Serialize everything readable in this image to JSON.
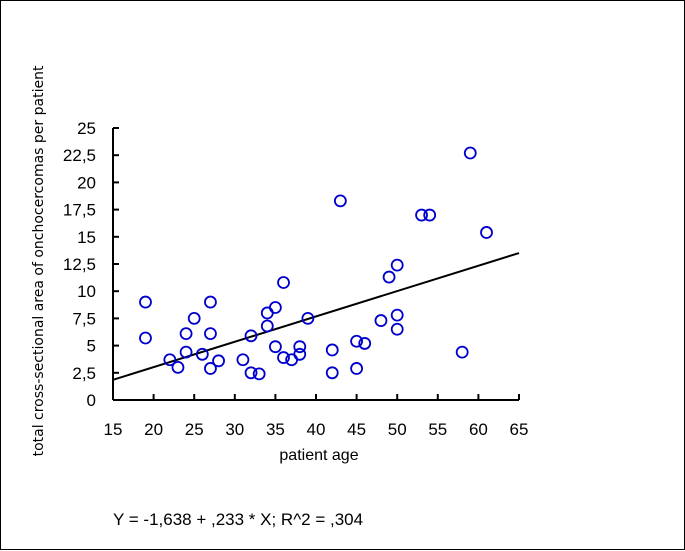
{
  "chart_data": {
    "type": "scatter",
    "title": "",
    "xlabel": "patient age",
    "ylabel": "total cross-sectional area of onchocercomas per patient",
    "xlim": [
      15,
      65
    ],
    "ylim": [
      0,
      25
    ],
    "x_ticks": [
      15,
      20,
      25,
      30,
      35,
      40,
      45,
      50,
      55,
      60,
      65
    ],
    "y_ticks": [
      0,
      2.5,
      5,
      7.5,
      10,
      12.5,
      15,
      17.5,
      20,
      22.5,
      25
    ],
    "x_tick_labels": [
      "15",
      "20",
      "25",
      "30",
      "35",
      "40",
      "45",
      "50",
      "55",
      "60",
      "65"
    ],
    "y_tick_labels": [
      "0",
      "2,5",
      "5",
      "7,5",
      "10",
      "12,5",
      "15",
      "17,5",
      "20",
      "22,5",
      "25"
    ],
    "grid": false,
    "marker": "open-circle",
    "marker_color": "#0000cc",
    "line_color": "#000000",
    "points": [
      {
        "x": 19,
        "y": 9.0
      },
      {
        "x": 19,
        "y": 5.7
      },
      {
        "x": 22,
        "y": 3.7
      },
      {
        "x": 23,
        "y": 3.0
      },
      {
        "x": 24,
        "y": 6.1
      },
      {
        "x": 24,
        "y": 4.4
      },
      {
        "x": 25,
        "y": 7.5
      },
      {
        "x": 26,
        "y": 4.2
      },
      {
        "x": 27,
        "y": 9.0
      },
      {
        "x": 27,
        "y": 6.1
      },
      {
        "x": 27,
        "y": 2.9
      },
      {
        "x": 28,
        "y": 3.6
      },
      {
        "x": 31,
        "y": 3.7
      },
      {
        "x": 32,
        "y": 5.9
      },
      {
        "x": 32,
        "y": 2.5
      },
      {
        "x": 33,
        "y": 2.4
      },
      {
        "x": 34,
        "y": 8.0
      },
      {
        "x": 34,
        "y": 6.8
      },
      {
        "x": 35,
        "y": 8.5
      },
      {
        "x": 35,
        "y": 4.9
      },
      {
        "x": 36,
        "y": 10.8
      },
      {
        "x": 36,
        "y": 3.9
      },
      {
        "x": 37,
        "y": 3.7
      },
      {
        "x": 38,
        "y": 4.9
      },
      {
        "x": 38,
        "y": 4.2
      },
      {
        "x": 39,
        "y": 7.5
      },
      {
        "x": 42,
        "y": 4.6
      },
      {
        "x": 42,
        "y": 2.5
      },
      {
        "x": 43,
        "y": 18.3
      },
      {
        "x": 45,
        "y": 5.4
      },
      {
        "x": 45,
        "y": 2.9
      },
      {
        "x": 46,
        "y": 5.2
      },
      {
        "x": 48,
        "y": 7.3
      },
      {
        "x": 49,
        "y": 11.3
      },
      {
        "x": 50,
        "y": 12.4
      },
      {
        "x": 50,
        "y": 7.8
      },
      {
        "x": 50,
        "y": 6.5
      },
      {
        "x": 53,
        "y": 17.0
      },
      {
        "x": 54,
        "y": 17.0
      },
      {
        "x": 58,
        "y": 4.4
      },
      {
        "x": 59,
        "y": 22.7
      },
      {
        "x": 61,
        "y": 15.4
      }
    ],
    "regression": {
      "intercept": -1.638,
      "slope": 0.233,
      "r2": 0.304
    },
    "equation_text": "Y = -1,638 + ,233 * X; R^2 = ,304"
  }
}
